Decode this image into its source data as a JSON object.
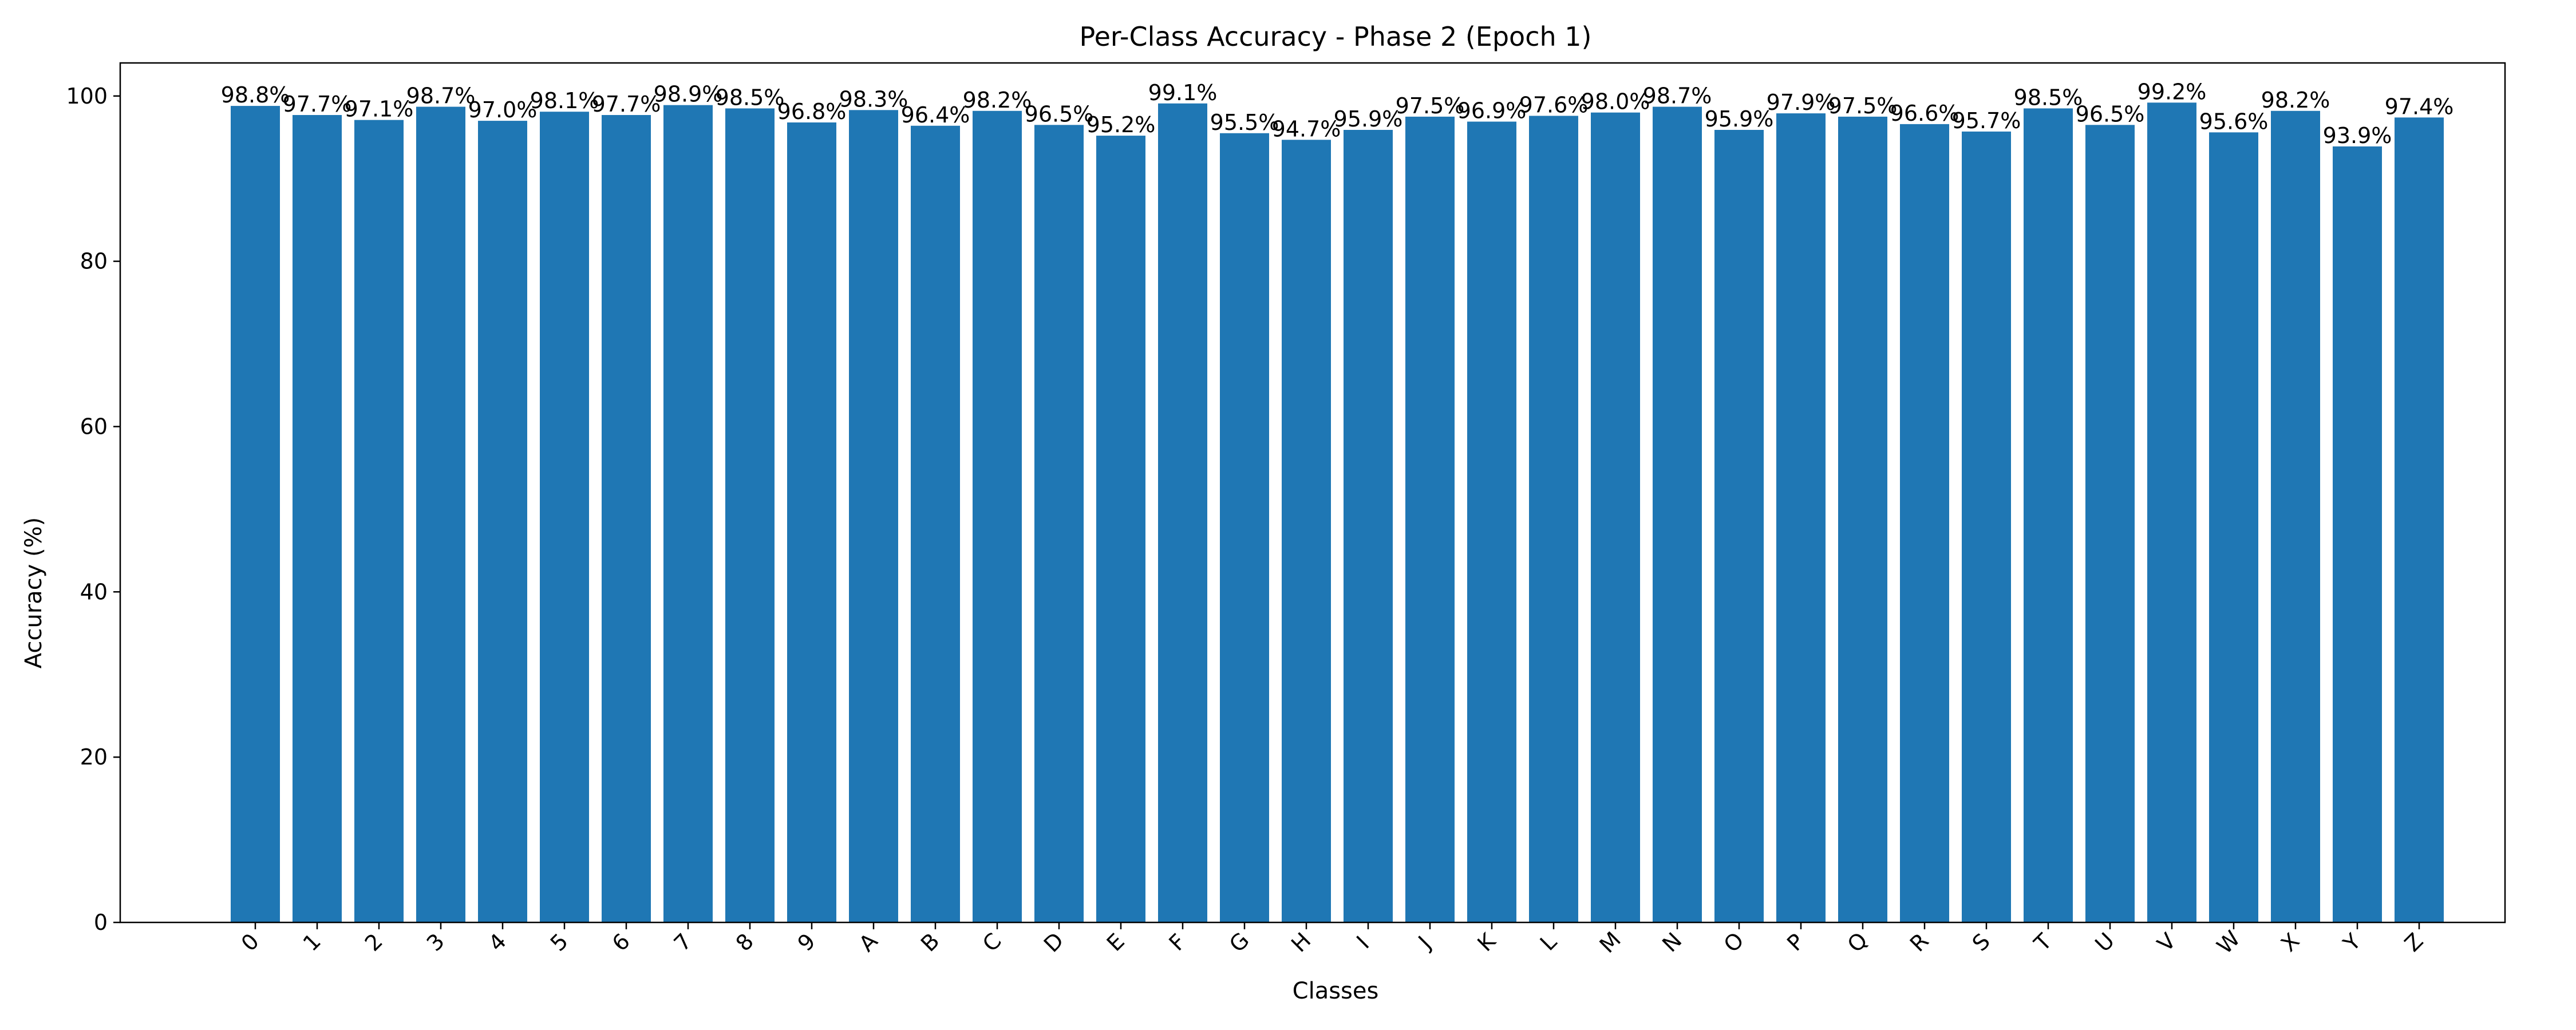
{
  "chart_data": {
    "type": "bar",
    "title": "Per-Class Accuracy - Phase 2 (Epoch 1)",
    "xlabel": "Classes",
    "ylabel": "Accuracy (%)",
    "ylim": [
      0,
      104
    ],
    "yticks": [
      0,
      20,
      40,
      60,
      80,
      100
    ],
    "grid": false,
    "bar_color": "#1f77b4",
    "categories": [
      "0",
      "1",
      "2",
      "3",
      "4",
      "5",
      "6",
      "7",
      "8",
      "9",
      "A",
      "B",
      "C",
      "D",
      "E",
      "F",
      "G",
      "H",
      "I",
      "J",
      "K",
      "L",
      "M",
      "N",
      "O",
      "P",
      "Q",
      "R",
      "S",
      "T",
      "U",
      "V",
      "W",
      "X",
      "Y",
      "Z"
    ],
    "values": [
      98.8,
      97.7,
      97.1,
      98.7,
      97.0,
      98.1,
      97.7,
      98.9,
      98.5,
      96.8,
      98.3,
      96.4,
      98.2,
      96.5,
      95.2,
      99.1,
      95.5,
      94.7,
      95.9,
      97.5,
      96.9,
      97.6,
      98.0,
      98.7,
      95.9,
      97.9,
      97.5,
      96.6,
      95.7,
      98.5,
      96.5,
      99.2,
      95.6,
      98.2,
      93.9,
      97.4
    ],
    "value_labels": [
      "98.8%",
      "97.7%",
      "97.1%",
      "98.7%",
      "97.0%",
      "98.1%",
      "97.7%",
      "98.9%",
      "98.5%",
      "96.8%",
      "98.3%",
      "96.4%",
      "98.2%",
      "96.5%",
      "95.2%",
      "99.1%",
      "95.5%",
      "94.7%",
      "95.9%",
      "97.5%",
      "96.9%",
      "97.6%",
      "98.0%",
      "98.7%",
      "95.9%",
      "97.9%",
      "97.5%",
      "96.6%",
      "95.7%",
      "98.5%",
      "96.5%",
      "99.2%",
      "95.6%",
      "98.2%",
      "93.9%",
      "97.4%"
    ]
  }
}
